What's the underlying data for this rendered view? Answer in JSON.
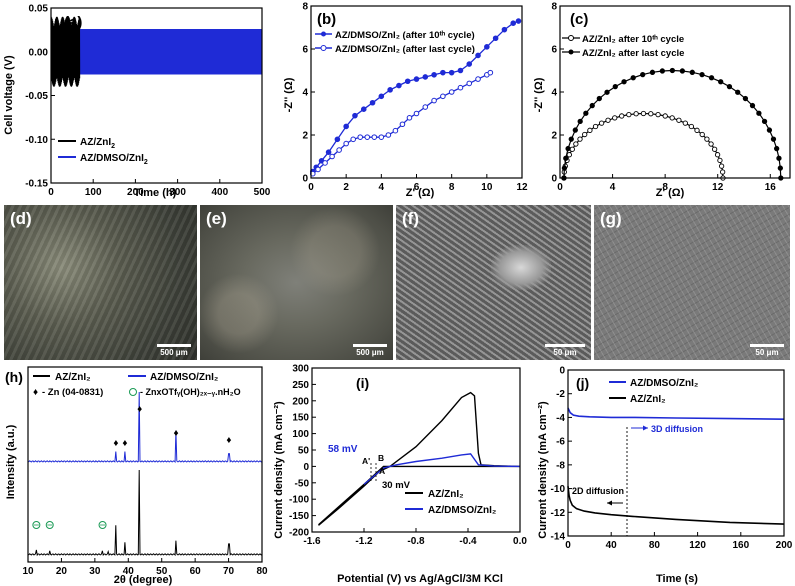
{
  "colors": {
    "black": "#000000",
    "blue": "#1f2bd6",
    "green": "#1a9a55"
  },
  "chart_data": [
    {
      "panel": "(a)",
      "type": "line",
      "xlabel": "Time (h)",
      "ylabel": "Cell voltage (V)",
      "xlim": [
        0,
        500
      ],
      "ylim": [
        -0.15,
        0.05
      ],
      "xticks": [
        "0",
        "100",
        "200",
        "300",
        "400",
        "500"
      ],
      "yticks": [
        "0.05",
        "0.00",
        "-0.05",
        "-0.10",
        "-0.15"
      ],
      "legend_position": "bottom-left",
      "series": [
        {
          "name": "AZ/ZnI2",
          "name_main": "AZ/ZnI",
          "name_sub": "2",
          "color": "#000000",
          "x_start": 0,
          "x_end": 68,
          "amplitude": 0.04
        },
        {
          "name": "AZ/DMSO/ZnI2",
          "name_main": "AZ/DMSO/ZnI",
          "name_sub": "2",
          "color": "#1f2bd6",
          "x_start": 0,
          "x_end": 500,
          "amplitude": 0.026
        }
      ]
    },
    {
      "panel": "(b)",
      "type": "line",
      "xlabel": "Z' (Ω)",
      "ylabel": "-Z'' (Ω)",
      "xlim": [
        0,
        12
      ],
      "ylim": [
        0,
        8
      ],
      "xticks": [
        "0",
        "2",
        "4",
        "6",
        "8",
        "10",
        "12"
      ],
      "yticks": [
        "0",
        "2",
        "4",
        "6",
        "8"
      ],
      "legend_position": "top-left",
      "series": [
        {
          "name": "AZ/DMSO/ZnI2 (after 10th cycle)",
          "label": "AZ/DMSO/ZnI₂ (after 10ᵗʰ cycle)",
          "color": "#1f2bd6",
          "marker": "filled",
          "x": [
            0.1,
            0.3,
            0.6,
            1.0,
            1.5,
            2.0,
            2.5,
            3.0,
            3.5,
            4.0,
            4.5,
            5.0,
            5.5,
            6.0,
            6.5,
            7.0,
            7.5,
            8.0,
            8.5,
            9.0,
            9.5,
            10.0,
            10.5,
            11.0,
            11.5,
            11.8
          ],
          "y": [
            0.3,
            0.5,
            0.8,
            1.2,
            1.8,
            2.4,
            2.9,
            3.2,
            3.5,
            3.8,
            4.1,
            4.3,
            4.5,
            4.6,
            4.7,
            4.8,
            4.9,
            4.9,
            5.0,
            5.3,
            5.7,
            6.1,
            6.5,
            6.9,
            7.2,
            7.3
          ]
        },
        {
          "name": "AZ/DMSO/ZnI2 (after last cycle)",
          "label": "AZ/DMSO/ZnI₂ (after last cycle)",
          "color": "#1f2bd6",
          "marker": "open",
          "x": [
            0.1,
            0.4,
            0.8,
            1.2,
            1.6,
            2.0,
            2.4,
            2.8,
            3.2,
            3.6,
            4.0,
            4.4,
            4.8,
            5.2,
            5.6,
            6.0,
            6.5,
            7.0,
            7.5,
            8.0,
            8.5,
            9.0,
            9.5,
            10.0,
            10.2
          ],
          "y": [
            0.2,
            0.4,
            0.7,
            1.0,
            1.3,
            1.6,
            1.8,
            1.9,
            1.9,
            1.9,
            1.9,
            2.0,
            2.2,
            2.5,
            2.8,
            3.0,
            3.3,
            3.6,
            3.8,
            4.0,
            4.2,
            4.4,
            4.6,
            4.8,
            4.9
          ]
        }
      ]
    },
    {
      "panel": "(c)",
      "type": "line",
      "xlabel": "Z' (Ω)",
      "ylabel": "-Z'' (Ω)",
      "xlim": [
        0,
        17.5
      ],
      "ylim": [
        0,
        8
      ],
      "xticks": [
        "0",
        "4",
        "8",
        "12",
        "16"
      ],
      "yticks": [
        "0",
        "2",
        "4",
        "6",
        "8"
      ],
      "legend_position": "top-left",
      "series": [
        {
          "name": "AZ/ZnI2 after 10th cycle",
          "label": "AZ/ZnI₂ after 10ᵗʰ cycle",
          "color": "#000000",
          "marker": "open",
          "x0": 0.3,
          "x1": 12.4,
          "peak": 3.0
        },
        {
          "name": "AZ/ZnI2 after last cycle",
          "label": "AZ/ZnI₂ after last cycle",
          "color": "#000000",
          "marker": "filled",
          "x0": 0.3,
          "x1": 16.8,
          "peak": 5.0
        }
      ]
    },
    {
      "panel": "(h)",
      "type": "line",
      "xlabel": "2θ (degree)",
      "ylabel": "Intensity (a.u.)",
      "xlim": [
        10,
        80
      ],
      "xticks": [
        "10",
        "20",
        "30",
        "40",
        "50",
        "60",
        "70",
        "80"
      ],
      "legend": {
        "zn": "- Zn (04-0831)",
        "salt": "- ZnxOTfᵧ(OH)₂ₓ₋ᵧ.nH₂O"
      },
      "series": [
        {
          "name": "AZ/ZnI2",
          "label": "AZ/ZnI₂",
          "color": "#000000",
          "peaks_2theta": [
            12.5,
            16.5,
            32.3,
            34.0,
            36.3,
            39.0,
            43.2,
            54.3,
            70.1
          ],
          "peaks_h": [
            0.06,
            0.05,
            0.05,
            0.04,
            0.35,
            0.15,
            1.0,
            0.17,
            0.13
          ]
        },
        {
          "name": "AZ/DMSO/ZnI2",
          "label": "AZ/DMSO/ZnI₂",
          "color": "#1f2bd6",
          "peaks_2theta": [
            36.3,
            39.0,
            43.2,
            54.3,
            70.1
          ],
          "peaks_h": [
            0.15,
            0.15,
            1.0,
            0.45,
            0.12
          ]
        }
      ],
      "zn_markers_2theta": [
        36.3,
        39.0,
        43.4,
        54.3,
        70.1
      ],
      "salt_markers_2theta": [
        12.5,
        16.5,
        32.3
      ]
    },
    {
      "panel": "(i)",
      "type": "line",
      "xlabel": "Potential (V) vs Ag/AgCl/3M KCl",
      "ylabel": "Current density (mA cm⁻²)",
      "xlim": [
        -1.6,
        0.0
      ],
      "ylim": [
        -200,
        300
      ],
      "xticks": [
        "-1.6",
        "-1.2",
        "-0.8",
        "-0.4",
        "0.0"
      ],
      "yticks": [
        "300",
        "250",
        "200",
        "150",
        "100",
        "50",
        "0",
        "-50",
        "-100",
        "-150",
        "-200"
      ],
      "annotations": [
        "58 mV",
        "30 mV",
        "A",
        "A'",
        "B"
      ],
      "series": [
        {
          "name": "AZ/ZnI2",
          "label": "AZ/ZnI₂",
          "color": "#000000",
          "x": [
            -1.55,
            -1.4,
            -1.2,
            -1.08,
            -1.0,
            -0.8,
            -0.6,
            -0.45,
            -0.38,
            -0.35,
            -0.32,
            -0.3,
            -0.2,
            -0.1,
            0.0,
            -0.1,
            -0.3,
            -0.6,
            -0.9,
            -1.05,
            -1.2,
            -1.4,
            -1.55
          ],
          "y": [
            -180,
            -130,
            -60,
            -15,
            0,
            60,
            140,
            210,
            225,
            215,
            40,
            5,
            2,
            1,
            0,
            0,
            0,
            0,
            0,
            0,
            -55,
            -125,
            -178
          ]
        },
        {
          "name": "AZ/DMSO/ZnI2",
          "label": "AZ/DMSO/ZnI₂",
          "color": "#1f2bd6",
          "x": [
            -1.2,
            -1.05,
            -0.95,
            -0.8,
            -0.6,
            -0.45,
            -0.38,
            -0.32,
            -0.2,
            0.0
          ],
          "y": [
            -55,
            -5,
            5,
            15,
            25,
            35,
            38,
            5,
            1,
            0
          ]
        }
      ]
    },
    {
      "panel": "(j)",
      "type": "line",
      "xlabel": "Time (s)",
      "ylabel": "Current density (mA cm⁻²)",
      "xlim": [
        0,
        200
      ],
      "ylim": [
        -14,
        0
      ],
      "xticks": [
        "0",
        "40",
        "80",
        "120",
        "160",
        "200"
      ],
      "yticks": [
        "0",
        "-2",
        "-4",
        "-6",
        "-8",
        "-10",
        "-12",
        "-14"
      ],
      "annotations": [
        "3D diffusion",
        "2D diffusion"
      ],
      "series": [
        {
          "name": "AZ/DMSO/ZnI2",
          "label": "AZ/DMSO/ZnI₂",
          "color": "#1f2bd6",
          "x": [
            0,
            2,
            5,
            10,
            20,
            40,
            60,
            100,
            150,
            200
          ],
          "y": [
            -3.2,
            -3.6,
            -3.8,
            -3.9,
            -3.95,
            -4.0,
            -4.0,
            -4.05,
            -4.1,
            -4.15
          ]
        },
        {
          "name": "AZ/ZnI2",
          "label": "AZ/ZnI₂",
          "color": "#000000",
          "x": [
            0,
            1,
            2,
            4,
            8,
            15,
            25,
            40,
            60,
            100,
            150,
            200
          ],
          "y": [
            -9.8,
            -10.6,
            -11.0,
            -11.4,
            -11.7,
            -11.9,
            -12.05,
            -12.2,
            -12.35,
            -12.6,
            -12.85,
            -13.0
          ]
        }
      ]
    }
  ],
  "photos": [
    {
      "label": "(d)",
      "scale": "500 μm"
    },
    {
      "label": "(e)",
      "scale": "500 μm"
    },
    {
      "label": "(f)",
      "scale": "50 μm"
    },
    {
      "label": "(g)",
      "scale": "50 μm"
    }
  ]
}
